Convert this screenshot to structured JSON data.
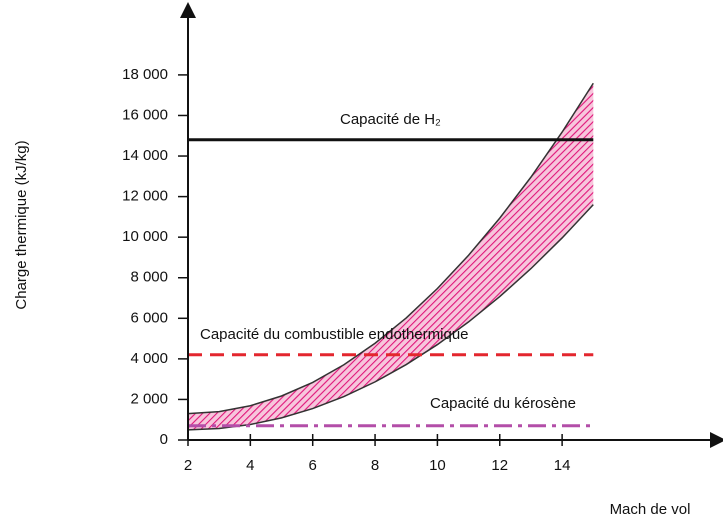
{
  "chart_data": {
    "type": "band",
    "xlabel": "Mach de vol",
    "ylabel": "Charge thermique (kJ/kg)",
    "xlim": [
      2,
      19
    ],
    "ylim": [
      0,
      21200
    ],
    "xticks": [
      2,
      4,
      6,
      8,
      10,
      12,
      14
    ],
    "yticks": [
      0,
      {
        "value": 2000,
        "label": "2 000"
      },
      {
        "value": 4000,
        "label": "4 000"
      },
      {
        "value": 6000,
        "label": "6 000"
      },
      {
        "value": 8000,
        "label": "8 000"
      },
      {
        "value": 10000,
        "label": "10 000"
      },
      {
        "value": 12000,
        "label": "12 000"
      },
      {
        "value": 14000,
        "label": "14 000"
      },
      {
        "value": 16000,
        "label": "16 000"
      },
      {
        "value": 18000,
        "label": "18 000"
      }
    ],
    "x": [
      2,
      3,
      4,
      5,
      6,
      7,
      8,
      9,
      10,
      11,
      12,
      13,
      14,
      15
    ],
    "band_color": "#e0157a",
    "series": [
      {
        "values": [
          1300,
          1400,
          1690,
          2170,
          2840,
          3710,
          4770,
          6020,
          7470,
          9110,
          10940,
          12960,
          15180,
          17590
        ],
        "color": "#333333"
      },
      {
        "values": [
          500,
          566,
          763,
          1091,
          1551,
          2143,
          2865,
          3719,
          4705,
          5822,
          7070,
          8450,
          9961,
          11603
        ],
        "color": "#333333"
      }
    ],
    "lines": [
      {
        "label": "Capacité de H₂",
        "value": 14800,
        "color": "#111111",
        "style": "solid",
        "x": [
          2,
          15
        ]
      },
      {
        "label": "Capacité du combustible endothermique",
        "value": 4200,
        "color": "#e3262e",
        "style": "dashed",
        "x": [
          2,
          15
        ]
      },
      {
        "label": "Capacité du kérosène",
        "value": 700,
        "color": "#b34ea8",
        "style": "dashdot",
        "x": [
          2,
          15
        ]
      }
    ]
  }
}
